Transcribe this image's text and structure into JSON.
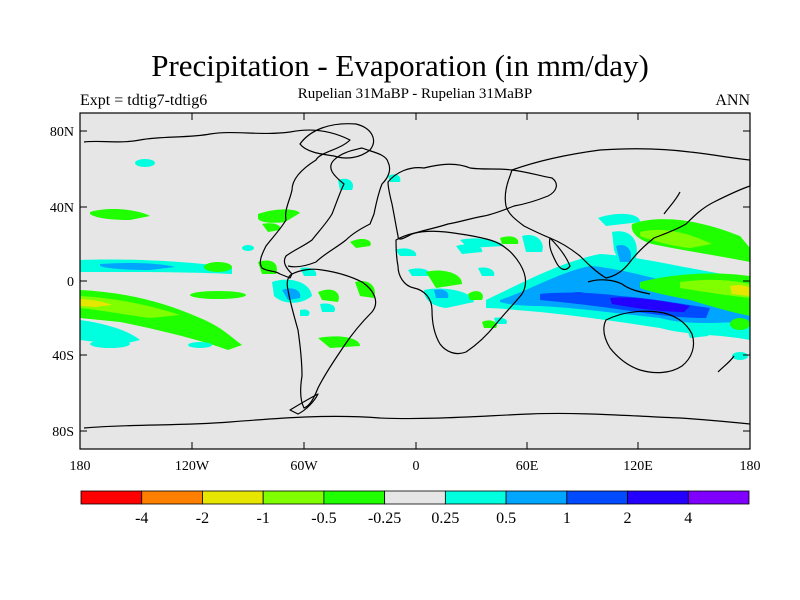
{
  "title": "Precipitation - Evaporation (in mm/day)",
  "subtitle": "Rupelian  31MaBP - Rupelian  31MaBP",
  "left_label": "Expt = tdtig7-tdtig6",
  "right_label": "ANN",
  "lat_ticks": [
    "80N",
    "40N",
    "0",
    "40S",
    "80S"
  ],
  "lon_ticks": [
    "180",
    "120W",
    "60W",
    "0",
    "60E",
    "120E",
    "180"
  ],
  "colorbar": {
    "colors": [
      "#ff0000",
      "#ff7f00",
      "#e6e600",
      "#7fff00",
      "#1fff00",
      "#e6e6e6",
      "#00ffdf",
      "#00a5ff",
      "#004bff",
      "#2400ff",
      "#7f00ff"
    ],
    "labels": [
      "-4",
      "-2",
      "-1",
      "-0.5",
      "-0.25",
      "0.25",
      "0.5",
      "1",
      "2",
      "4"
    ]
  },
  "colors": {
    "background": "#e6e6e6",
    "green_light": "#7fff00",
    "green": "#1fff00",
    "cyan": "#00ffdf",
    "blue": "#00a5ff",
    "deep_blue": "#004bff",
    "navy": "#2400ff"
  }
}
